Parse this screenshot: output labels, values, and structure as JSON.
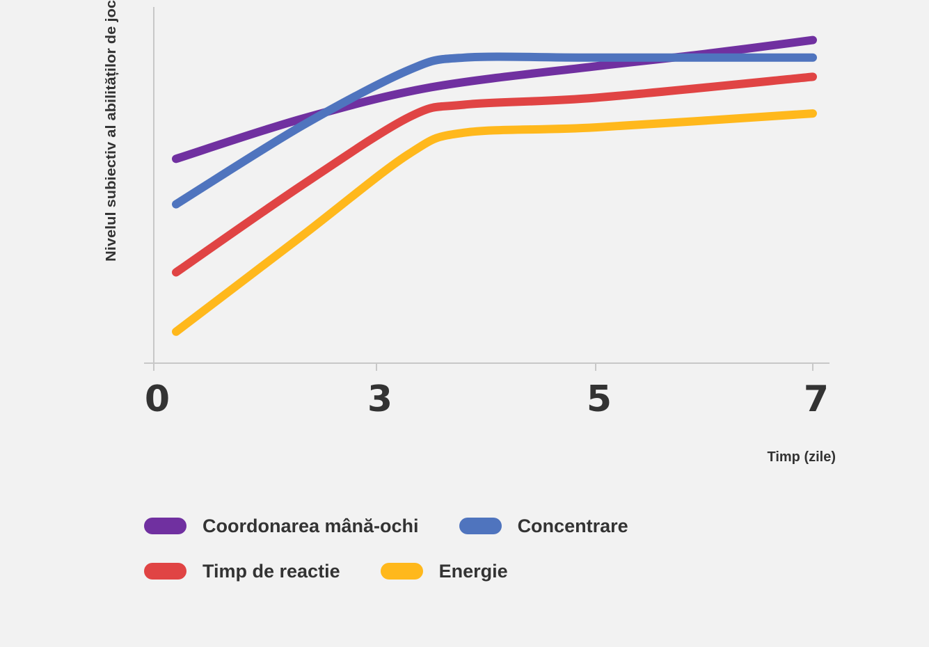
{
  "chart_data": {
    "type": "line",
    "ylabel": "Nivelul subiectiv al abilităților de joc",
    "xlabel": "Timp (zile)",
    "x_ticks": [
      "0",
      "3",
      "5",
      "7"
    ],
    "x_tick_values": [
      0,
      3,
      5,
      7
    ],
    "xlim": [
      0,
      7
    ],
    "ylim": [
      0,
      100
    ],
    "grid": false,
    "legend_position": "bottom",
    "series": [
      {
        "name": "Coordonarea mână-ochi",
        "color": "#7030a0",
        "x": [
          0.3,
          2.0,
          3.5,
          5.0,
          6.0,
          7.0
        ],
        "values": [
          58.5,
          70.0,
          79.0,
          85.0,
          88.5,
          92.5
        ]
      },
      {
        "name": "Concentrare",
        "color": "#4f74be",
        "x": [
          0.3,
          2.0,
          3.3,
          3.8,
          5.0,
          7.0
        ],
        "values": [
          45.5,
          68.0,
          84.0,
          87.5,
          87.5,
          87.5
        ]
      },
      {
        "name": "Timp de reactie",
        "color": "#e04444",
        "x": [
          0.3,
          2.0,
          3.3,
          3.8,
          5.0,
          7.0
        ],
        "values": [
          26.0,
          51.0,
          70.5,
          74.0,
          76.0,
          82.0
        ]
      },
      {
        "name": "Energie",
        "color": "#ffb81c",
        "x": [
          0.3,
          2.0,
          3.3,
          3.8,
          5.0,
          7.0
        ],
        "values": [
          9.0,
          36.5,
          60.0,
          66.0,
          67.5,
          71.5
        ]
      }
    ]
  }
}
